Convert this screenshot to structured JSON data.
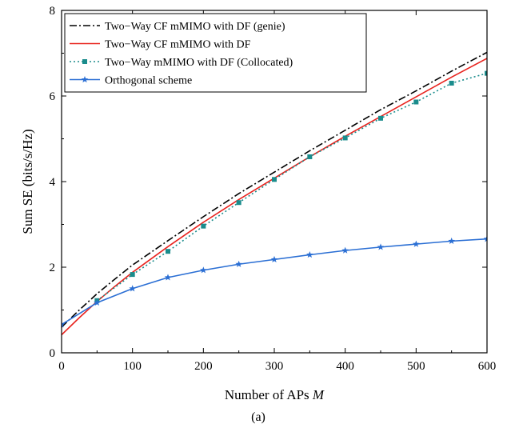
{
  "chart_data": {
    "type": "line",
    "xlabel_text": "Number of APs ",
    "xlabel_var": "M",
    "ylabel": "Sum SE (bits/s/Hz)",
    "xlim": [
      0,
      600
    ],
    "ylim": [
      0,
      8
    ],
    "xticks": [
      0,
      100,
      200,
      300,
      400,
      500,
      600
    ],
    "yticks": [
      0,
      2,
      4,
      6,
      8
    ],
    "grid": false,
    "legend_position": "top-left",
    "caption": "(a)",
    "series": [
      {
        "name": "Two−Way CF mMIMO with DF (genie)",
        "color": "#000000",
        "dash": "dashdot",
        "marker": "none",
        "x": [
          0,
          25,
          50,
          75,
          100,
          150,
          200,
          250,
          300,
          350,
          400,
          450,
          500,
          550,
          600
        ],
        "y": [
          0.6,
          1.0,
          1.38,
          1.72,
          2.05,
          2.62,
          3.18,
          3.72,
          4.22,
          4.72,
          5.2,
          5.68,
          6.12,
          6.58,
          7.02
        ]
      },
      {
        "name": "Two−Way CF mMIMO with DF",
        "color": "#e8231e",
        "dash": "solid",
        "marker": "none",
        "x": [
          0,
          25,
          50,
          75,
          100,
          150,
          200,
          250,
          300,
          350,
          400,
          450,
          500,
          550,
          600
        ],
        "y": [
          0.42,
          0.82,
          1.2,
          1.55,
          1.88,
          2.48,
          3.05,
          3.58,
          4.08,
          4.58,
          5.06,
          5.52,
          5.98,
          6.44,
          6.88
        ]
      },
      {
        "name": "Two−Way mMIMO with DF (Collocated)",
        "color": "#1a8c8c",
        "dash": "dotted",
        "marker": "square",
        "x": [
          50,
          100,
          150,
          200,
          250,
          300,
          350,
          400,
          450,
          500,
          550,
          600
        ],
        "y": [
          1.22,
          1.83,
          2.37,
          2.96,
          3.51,
          4.05,
          4.58,
          5.02,
          5.48,
          5.86,
          6.3,
          6.53
        ]
      },
      {
        "name": "Orthogonal scheme",
        "color": "#2b6fd4",
        "dash": "solid",
        "marker": "star",
        "x": [
          0,
          50,
          100,
          150,
          200,
          250,
          300,
          350,
          400,
          450,
          500,
          550,
          600
        ],
        "y": [
          0.66,
          1.17,
          1.5,
          1.76,
          1.93,
          2.07,
          2.18,
          2.29,
          2.39,
          2.47,
          2.54,
          2.61,
          2.66
        ]
      }
    ]
  }
}
